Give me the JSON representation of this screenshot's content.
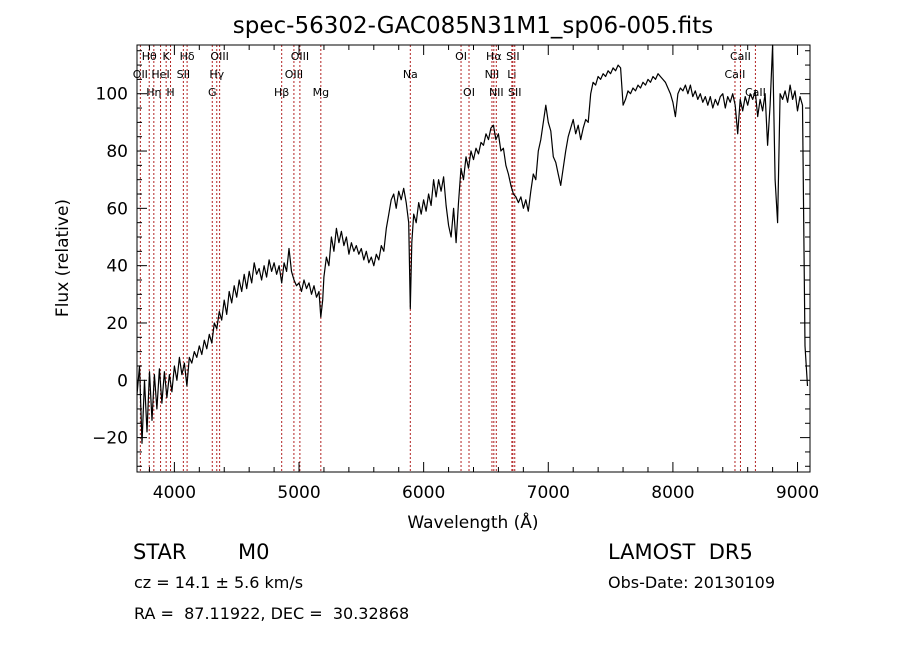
{
  "chart_data": {
    "type": "line",
    "title": "spec-56302-GAC085N31M1_sp06-005.fits",
    "xlabel": "Wavelength (Å)",
    "ylabel": "Flux (relative)",
    "xlim": [
      3700,
      9100
    ],
    "ylim": [
      -32,
      117
    ],
    "x_ticks": [
      4000,
      5000,
      6000,
      7000,
      8000,
      9000
    ],
    "y_ticks": [
      -20,
      0,
      20,
      40,
      60,
      80,
      100
    ],
    "x_tick_labels": [
      "4000",
      "5000",
      "6000",
      "7000",
      "8000",
      "9000"
    ],
    "y_tick_labels": [
      "−20",
      "0",
      "20",
      "40",
      "60",
      "80",
      "100"
    ],
    "grid": false,
    "line_color": "#000000",
    "marker_line_color": "#b22222",
    "series": [
      {
        "points": [
          [
            3700,
            -5
          ],
          [
            3720,
            5
          ],
          [
            3740,
            -22
          ],
          [
            3760,
            0
          ],
          [
            3780,
            -18
          ],
          [
            3800,
            3
          ],
          [
            3820,
            -14
          ],
          [
            3840,
            2
          ],
          [
            3860,
            -10
          ],
          [
            3880,
            4
          ],
          [
            3900,
            -8
          ],
          [
            3920,
            3
          ],
          [
            3940,
            -6
          ],
          [
            3960,
            2
          ],
          [
            3980,
            -4
          ],
          [
            4000,
            5
          ],
          [
            4020,
            0
          ],
          [
            4040,
            8
          ],
          [
            4060,
            2
          ],
          [
            4080,
            6
          ],
          [
            4100,
            -2
          ],
          [
            4120,
            8
          ],
          [
            4140,
            6
          ],
          [
            4160,
            10
          ],
          [
            4180,
            8
          ],
          [
            4200,
            12
          ],
          [
            4220,
            9
          ],
          [
            4240,
            14
          ],
          [
            4260,
            11
          ],
          [
            4280,
            16
          ],
          [
            4300,
            13
          ],
          [
            4320,
            20
          ],
          [
            4340,
            18
          ],
          [
            4360,
            24
          ],
          [
            4380,
            21
          ],
          [
            4400,
            28
          ],
          [
            4420,
            23
          ],
          [
            4440,
            31
          ],
          [
            4460,
            27
          ],
          [
            4480,
            33
          ],
          [
            4500,
            29
          ],
          [
            4520,
            35
          ],
          [
            4540,
            31
          ],
          [
            4560,
            37
          ],
          [
            4580,
            32
          ],
          [
            4600,
            38
          ],
          [
            4620,
            34
          ],
          [
            4640,
            41
          ],
          [
            4660,
            37
          ],
          [
            4680,
            39
          ],
          [
            4700,
            35
          ],
          [
            4720,
            40
          ],
          [
            4740,
            36
          ],
          [
            4760,
            42
          ],
          [
            4780,
            38
          ],
          [
            4800,
            41
          ],
          [
            4820,
            37
          ],
          [
            4840,
            40
          ],
          [
            4861,
            34
          ],
          [
            4880,
            41
          ],
          [
            4900,
            38
          ],
          [
            4920,
            46
          ],
          [
            4940,
            38
          ],
          [
            4960,
            35
          ],
          [
            4980,
            33
          ],
          [
            5000,
            34
          ],
          [
            5020,
            31
          ],
          [
            5040,
            35
          ],
          [
            5060,
            32
          ],
          [
            5080,
            34
          ],
          [
            5100,
            30
          ],
          [
            5120,
            33
          ],
          [
            5140,
            29
          ],
          [
            5160,
            31
          ],
          [
            5175,
            22
          ],
          [
            5190,
            28
          ],
          [
            5200,
            36
          ],
          [
            5220,
            43
          ],
          [
            5240,
            40
          ],
          [
            5260,
            50
          ],
          [
            5280,
            45
          ],
          [
            5300,
            53
          ],
          [
            5320,
            48
          ],
          [
            5340,
            52
          ],
          [
            5360,
            47
          ],
          [
            5380,
            50
          ],
          [
            5400,
            44
          ],
          [
            5420,
            48
          ],
          [
            5440,
            45
          ],
          [
            5460,
            47
          ],
          [
            5480,
            44
          ],
          [
            5500,
            46
          ],
          [
            5520,
            42
          ],
          [
            5540,
            45
          ],
          [
            5560,
            41
          ],
          [
            5580,
            43
          ],
          [
            5600,
            40
          ],
          [
            5620,
            44
          ],
          [
            5640,
            42
          ],
          [
            5660,
            47
          ],
          [
            5680,
            45
          ],
          [
            5700,
            53
          ],
          [
            5720,
            58
          ],
          [
            5740,
            63
          ],
          [
            5760,
            65
          ],
          [
            5780,
            60
          ],
          [
            5800,
            66
          ],
          [
            5820,
            63
          ],
          [
            5840,
            67
          ],
          [
            5860,
            62
          ],
          [
            5880,
            55
          ],
          [
            5893,
            25
          ],
          [
            5905,
            48
          ],
          [
            5920,
            58
          ],
          [
            5940,
            55
          ],
          [
            5960,
            62
          ],
          [
            5980,
            58
          ],
          [
            6000,
            63
          ],
          [
            6020,
            59
          ],
          [
            6040,
            65
          ],
          [
            6060,
            61
          ],
          [
            6080,
            70
          ],
          [
            6100,
            64
          ],
          [
            6120,
            70
          ],
          [
            6140,
            66
          ],
          [
            6160,
            71
          ],
          [
            6180,
            61
          ],
          [
            6200,
            54
          ],
          [
            6220,
            50
          ],
          [
            6240,
            60
          ],
          [
            6260,
            48
          ],
          [
            6280,
            62
          ],
          [
            6300,
            74
          ],
          [
            6320,
            70
          ],
          [
            6340,
            78
          ],
          [
            6360,
            74
          ],
          [
            6380,
            80
          ],
          [
            6400,
            77
          ],
          [
            6420,
            81
          ],
          [
            6440,
            79
          ],
          [
            6460,
            83
          ],
          [
            6480,
            82
          ],
          [
            6500,
            86
          ],
          [
            6520,
            84
          ],
          [
            6540,
            88
          ],
          [
            6560,
            89
          ],
          [
            6580,
            84
          ],
          [
            6600,
            86
          ],
          [
            6620,
            80
          ],
          [
            6640,
            81
          ],
          [
            6660,
            75
          ],
          [
            6680,
            72
          ],
          [
            6700,
            68
          ],
          [
            6720,
            65
          ],
          [
            6740,
            64
          ],
          [
            6760,
            62
          ],
          [
            6780,
            64
          ],
          [
            6800,
            60
          ],
          [
            6820,
            63
          ],
          [
            6840,
            59
          ],
          [
            6860,
            66
          ],
          [
            6880,
            72
          ],
          [
            6900,
            70
          ],
          [
            6920,
            80
          ],
          [
            6940,
            84
          ],
          [
            6960,
            90
          ],
          [
            6980,
            96
          ],
          [
            7000,
            90
          ],
          [
            7020,
            87
          ],
          [
            7040,
            78
          ],
          [
            7060,
            76
          ],
          [
            7080,
            72
          ],
          [
            7100,
            68
          ],
          [
            7120,
            74
          ],
          [
            7140,
            80
          ],
          [
            7160,
            85
          ],
          [
            7180,
            88
          ],
          [
            7200,
            91
          ],
          [
            7220,
            86
          ],
          [
            7240,
            89
          ],
          [
            7260,
            84
          ],
          [
            7280,
            88
          ],
          [
            7300,
            91
          ],
          [
            7320,
            90
          ],
          [
            7340,
            100
          ],
          [
            7360,
            104
          ],
          [
            7380,
            103
          ],
          [
            7400,
            106
          ],
          [
            7420,
            105
          ],
          [
            7440,
            107
          ],
          [
            7460,
            106
          ],
          [
            7480,
            108
          ],
          [
            7500,
            107
          ],
          [
            7520,
            109
          ],
          [
            7540,
            108
          ],
          [
            7560,
            110
          ],
          [
            7580,
            109
          ],
          [
            7600,
            96
          ],
          [
            7620,
            98
          ],
          [
            7640,
            101
          ],
          [
            7660,
            100
          ],
          [
            7680,
            102
          ],
          [
            7700,
            101
          ],
          [
            7720,
            103
          ],
          [
            7740,
            102
          ],
          [
            7760,
            104
          ],
          [
            7780,
            103
          ],
          [
            7800,
            105
          ],
          [
            7820,
            104
          ],
          [
            7840,
            106
          ],
          [
            7860,
            105
          ],
          [
            7880,
            107
          ],
          [
            7900,
            106
          ],
          [
            7920,
            105
          ],
          [
            7940,
            104
          ],
          [
            7960,
            102
          ],
          [
            7980,
            100
          ],
          [
            8000,
            97
          ],
          [
            8020,
            92
          ],
          [
            8040,
            100
          ],
          [
            8060,
            102
          ],
          [
            8080,
            101
          ],
          [
            8100,
            103
          ],
          [
            8120,
            100
          ],
          [
            8140,
            103
          ],
          [
            8160,
            99
          ],
          [
            8180,
            101
          ],
          [
            8200,
            98
          ],
          [
            8220,
            100
          ],
          [
            8240,
            97
          ],
          [
            8260,
            99
          ],
          [
            8280,
            96
          ],
          [
            8300,
            99
          ],
          [
            8320,
            95
          ],
          [
            8340,
            98
          ],
          [
            8360,
            96
          ],
          [
            8380,
            99
          ],
          [
            8400,
            100
          ],
          [
            8420,
            95
          ],
          [
            8440,
            99
          ],
          [
            8460,
            97
          ],
          [
            8480,
            100
          ],
          [
            8500,
            96
          ],
          [
            8520,
            86
          ],
          [
            8540,
            98
          ],
          [
            8560,
            94
          ],
          [
            8580,
            99
          ],
          [
            8600,
            96
          ],
          [
            8620,
            100
          ],
          [
            8640,
            98
          ],
          [
            8660,
            101
          ],
          [
            8680,
            92
          ],
          [
            8700,
            98
          ],
          [
            8720,
            94
          ],
          [
            8740,
            100
          ],
          [
            8760,
            82
          ],
          [
            8780,
            96
          ],
          [
            8800,
            117
          ],
          [
            8820,
            70
          ],
          [
            8840,
            55
          ],
          [
            8860,
            100
          ],
          [
            8880,
            98
          ],
          [
            8900,
            101
          ],
          [
            8920,
            97
          ],
          [
            8940,
            103
          ],
          [
            8960,
            98
          ],
          [
            8980,
            101
          ],
          [
            9000,
            94
          ],
          [
            9020,
            99
          ],
          [
            9040,
            96
          ],
          [
            9060,
            12
          ],
          [
            9080,
            -2
          ]
        ]
      }
    ],
    "line_markers": [
      {
        "wavelength": 3727,
        "label": "OII",
        "row": 1
      },
      {
        "wavelength": 3798,
        "label": "Hθ",
        "row": 0
      },
      {
        "wavelength": 3835,
        "label": "Hη",
        "row": 2
      },
      {
        "wavelength": 3889,
        "label": "HeI",
        "row": 1
      },
      {
        "wavelength": 3934,
        "label": "K",
        "row": 0
      },
      {
        "wavelength": 3969,
        "label": "H",
        "row": 2
      },
      {
        "wavelength": 4072,
        "label": "SII",
        "row": 1
      },
      {
        "wavelength": 4102,
        "label": "Hδ",
        "row": 0
      },
      {
        "wavelength": 4304,
        "label": "G",
        "row": 2
      },
      {
        "wavelength": 4340,
        "label": "Hγ",
        "row": 1
      },
      {
        "wavelength": 4363,
        "label": "OIII",
        "row": 0
      },
      {
        "wavelength": 4861,
        "label": "Hβ",
        "row": 2
      },
      {
        "wavelength": 4959,
        "label": "OIII",
        "row": 1
      },
      {
        "wavelength": 5007,
        "label": "OIII",
        "row": 0
      },
      {
        "wavelength": 5175,
        "label": "Mg",
        "row": 2
      },
      {
        "wavelength": 5893,
        "label": "Na",
        "row": 1
      },
      {
        "wavelength": 6300,
        "label": "OI",
        "row": 0
      },
      {
        "wavelength": 6364,
        "label": "OI",
        "row": 2
      },
      {
        "wavelength": 6548,
        "label": "NII",
        "row": 1
      },
      {
        "wavelength": 6563,
        "label": "Hα",
        "row": 0
      },
      {
        "wavelength": 6583,
        "label": "NII",
        "row": 2
      },
      {
        "wavelength": 6708,
        "label": "Li",
        "row": 1
      },
      {
        "wavelength": 6716,
        "label": "SII",
        "row": 0
      },
      {
        "wavelength": 6731,
        "label": "SII",
        "row": 2
      },
      {
        "wavelength": 8498,
        "label": "CaII",
        "row": 1
      },
      {
        "wavelength": 8542,
        "label": "CaII",
        "row": 0
      },
      {
        "wavelength": 8662,
        "label": "CaII",
        "row": 2
      }
    ]
  },
  "info": {
    "object_class": "STAR",
    "subclass": "M0",
    "survey": "LAMOST  DR5",
    "redshift_line": "cz = 14.1 ± 5.6 km/s",
    "obs_date": "Obs-Date: 20130109",
    "coords": "RA =  87.11922, DEC =  30.32868"
  }
}
